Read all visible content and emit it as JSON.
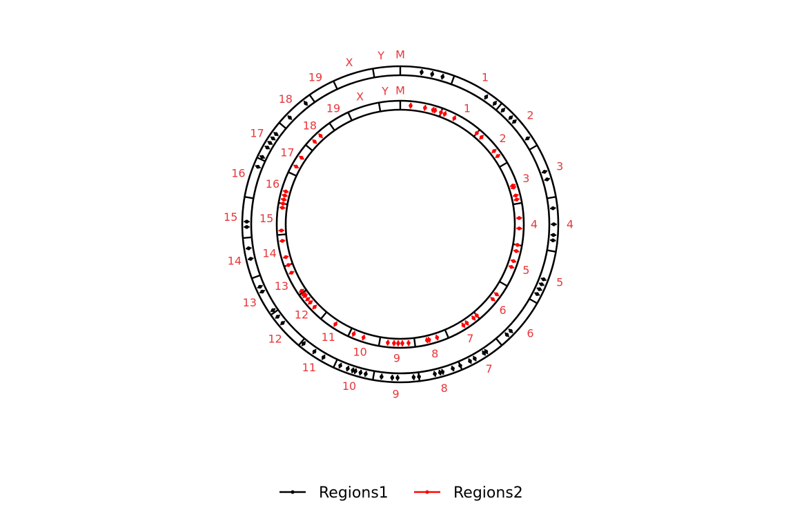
{
  "chart_data": {
    "type": "circos",
    "chromosomes": [
      "M",
      "1",
      "2",
      "3",
      "4",
      "5",
      "6",
      "7",
      "8",
      "9",
      "10",
      "11",
      "12",
      "13",
      "14",
      "15",
      "16",
      "17",
      "18",
      "19",
      "X",
      "Y"
    ],
    "chromosome_extent_deg": [
      [
        0,
        20
      ],
      [
        20,
        40
      ],
      [
        40,
        60
      ],
      [
        60,
        80
      ],
      [
        80,
        100
      ],
      [
        100,
        120
      ],
      [
        120,
        140
      ],
      [
        140,
        157
      ],
      [
        157,
        173
      ],
      [
        173,
        190
      ],
      [
        190,
        205
      ],
      [
        205,
        220
      ],
      [
        220,
        235
      ],
      [
        235,
        250
      ],
      [
        250,
        265
      ],
      [
        265,
        280
      ],
      [
        280,
        295
      ],
      [
        295,
        310
      ],
      [
        310,
        325
      ],
      [
        325,
        335
      ],
      [
        335,
        350
      ],
      [
        350,
        360
      ]
    ],
    "series": [
      {
        "name": "Regions1",
        "color": "#000000",
        "ring": "outer",
        "positions_deg": [
          8,
          12,
          16,
          34,
          38,
          42,
          46,
          48,
          56,
          70,
          73,
          84,
          90,
          94,
          96,
          111,
          113,
          115,
          117,
          134,
          136,
          146,
          147,
          151,
          153,
          157,
          160,
          164,
          165,
          167,
          173,
          175,
          181,
          183,
          187,
          193,
          195,
          197,
          198,
          200,
          203,
          210,
          214,
          219,
          230,
          233,
          236,
          244,
          246,
          257,
          261,
          269,
          271,
          292,
          296,
          300,
          302,
          304,
          306,
          314,
          322
        ]
      },
      {
        "name": "Regions2",
        "color": "#ff0000",
        "ring": "inner",
        "positions_deg": [
          5,
          12,
          16,
          17,
          20,
          22,
          27,
          40,
          43,
          52,
          55,
          71,
          72,
          76,
          78,
          87,
          92,
          100,
          103,
          108,
          111,
          126,
          129,
          140,
          142,
          146,
          148,
          162,
          166,
          167,
          176,
          179,
          181,
          183,
          186,
          198,
          203,
          213,
          226,
          229,
          231,
          233,
          234,
          236,
          246,
          250,
          254,
          262,
          267,
          278,
          280,
          282,
          284,
          286,
          299,
          304,
          314,
          318
        ]
      }
    ],
    "legend": {
      "position": "bottom",
      "entries": [
        "Regions1",
        "Regions2"
      ]
    }
  }
}
